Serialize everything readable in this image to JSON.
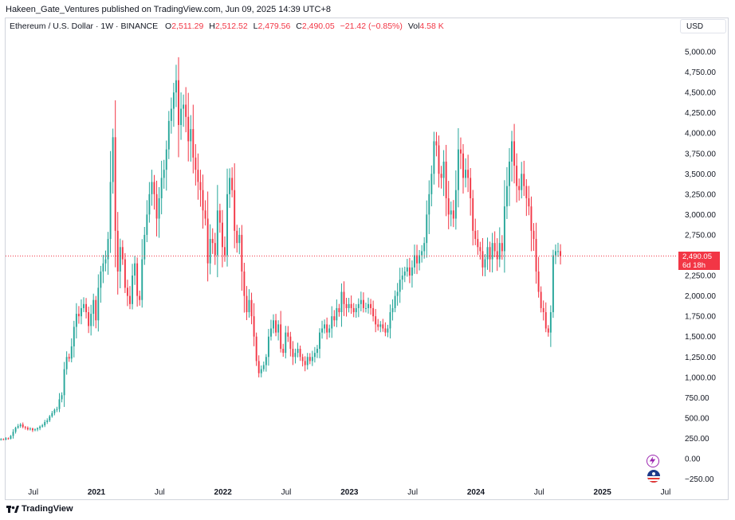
{
  "header": {
    "published": "Hakeen_Gate_Ventures published on TradingView.com, Jun 09, 2025 14:39 UTC+8"
  },
  "legend": {
    "symbol": "Ethereum / U.S. Dollar · 1W · BINANCE",
    "o_label": "O",
    "o_value": "2,511.29",
    "h_label": "H",
    "h_value": "2,512.52",
    "l_label": "L",
    "l_value": "2,479.56",
    "c_label": "C",
    "c_value": "2,490.05",
    "change": "−21.42 (−0.85%)",
    "vol_label": "Vol",
    "vol_value": "4.58 K"
  },
  "currency": "USD",
  "price_tag": {
    "price": "2,490.05",
    "countdown": "6d 18h"
  },
  "footer": {
    "brand": "TradingView"
  },
  "colors": {
    "up": "#26a69a",
    "down": "#f23645",
    "last_line": "#f23645"
  },
  "chart_data": {
    "type": "candlestick",
    "interval": "1W",
    "y_ticks": [
      "5,000.00",
      "4,750.00",
      "4,500.00",
      "4,250.00",
      "4,000.00",
      "3,750.00",
      "3,500.00",
      "3,250.00",
      "3,000.00",
      "2,750.00",
      "2,250.00",
      "2,000.00",
      "1,750.00",
      "1,500.00",
      "1,250.00",
      "1,000.00",
      "750.00",
      "500.00",
      "250.00",
      "0.00",
      "−250.00"
    ],
    "y_values": [
      5000,
      4750,
      4500,
      4250,
      4000,
      3750,
      3500,
      3250,
      3000,
      2750,
      2250,
      2000,
      1750,
      1500,
      1250,
      1000,
      750,
      500,
      250,
      0,
      -250
    ],
    "ylim": [
      -300,
      5150
    ],
    "x_ticks": [
      {
        "label": "Jul",
        "t": 2020.5,
        "bold": false
      },
      {
        "label": "2021",
        "t": 2021.0,
        "bold": true
      },
      {
        "label": "Jul",
        "t": 2021.5,
        "bold": false
      },
      {
        "label": "2022",
        "t": 2022.0,
        "bold": true
      },
      {
        "label": "Jul",
        "t": 2022.5,
        "bold": false
      },
      {
        "label": "2023",
        "t": 2023.0,
        "bold": true
      },
      {
        "label": "Jul",
        "t": 2023.5,
        "bold": false
      },
      {
        "label": "2024",
        "t": 2024.0,
        "bold": true
      },
      {
        "label": "Jul",
        "t": 2024.5,
        "bold": false
      },
      {
        "label": "2025",
        "t": 2025.0,
        "bold": true
      },
      {
        "label": "Jul",
        "t": 2025.5,
        "bold": false
      }
    ],
    "last_price": 2490.05,
    "start_year": 2020.13,
    "weeks_per_year": 52,
    "closes": [
      180,
      200,
      210,
      205,
      225,
      230,
      240,
      235,
      250,
      245,
      280,
      330,
      380,
      400,
      420,
      390,
      380,
      360,
      370,
      350,
      360,
      375,
      395,
      410,
      450,
      470,
      520,
      560,
      600,
      610,
      730,
      780,
      1100,
      1250,
      1230,
      1380,
      1620,
      1780,
      1750,
      1850,
      1900,
      1800,
      1630,
      1780,
      1950,
      1700,
      2100,
      2300,
      2400,
      2450,
      2700,
      3400,
      3950,
      2800,
      2300,
      2600,
      2450,
      2100,
      2000,
      1900,
      2250,
      2400,
      2000,
      1950,
      2450,
      2750,
      3000,
      3250,
      3400,
      3250,
      2950,
      3200,
      3450,
      3550,
      3800,
      4150,
      4300,
      4500,
      4650,
      4100,
      4300,
      4350,
      4200,
      3900,
      4050,
      3700,
      3550,
      3400,
      3300,
      3050,
      2950,
      2400,
      2700,
      2650,
      2500,
      3050,
      2900,
      2600,
      2500,
      3250,
      3450,
      3300,
      2800,
      2650,
      2750,
      2300,
      2000,
      1800,
      1950,
      1750,
      1500,
      1200,
      1050,
      1100,
      1150,
      1250,
      1500,
      1600,
      1700,
      1550,
      1650,
      1350,
      1300,
      1550,
      1500,
      1350,
      1250,
      1300,
      1350,
      1250,
      1200,
      1150,
      1250,
      1200,
      1250,
      1300,
      1350,
      1550,
      1600,
      1650,
      1550,
      1600,
      1750,
      1700,
      1850,
      1800,
      2050,
      1900,
      1850,
      1900,
      1850,
      1800,
      1850,
      1900,
      1950,
      1850,
      1850,
      1900,
      1850,
      1750,
      1650,
      1620,
      1650,
      1600,
      1550,
      1600,
      1800,
      1850,
      2000,
      2050,
      2200,
      2250,
      2300,
      2350,
      2250,
      2350,
      2500,
      2400,
      2500,
      2550,
      2650,
      3000,
      3250,
      3500,
      3900,
      3850,
      3500,
      3450,
      3650,
      3200,
      3000,
      3050,
      2950,
      3300,
      3800,
      3750,
      3450,
      3550,
      3450,
      3200,
      2800,
      2700,
      2600,
      2550,
      2350,
      2450,
      2600,
      2450,
      2650,
      2550,
      2450,
      2650,
      2550,
      3100,
      3350,
      3650,
      3900,
      3600,
      3350,
      3300,
      3500,
      3350,
      3200,
      3100,
      2800,
      2700,
      2300,
      2050,
      1850,
      1800,
      1600,
      1550,
      1800,
      2500,
      2550,
      2550,
      2490
    ]
  }
}
